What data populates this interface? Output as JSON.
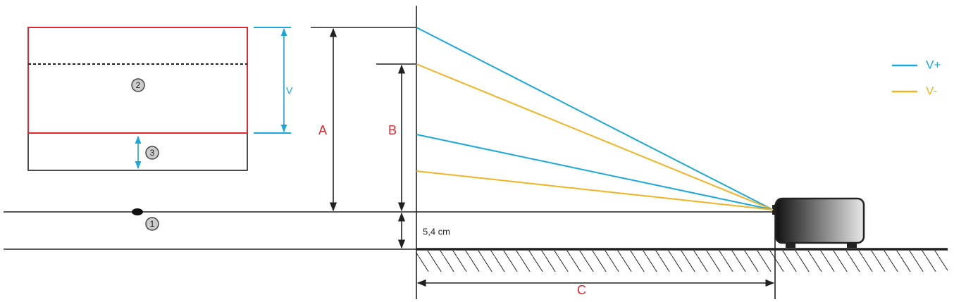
{
  "labels": {
    "v": "V",
    "a": "A",
    "b": "B",
    "c": "C"
  },
  "offset": "5,4 cm",
  "markers": [
    "1",
    "2",
    "3"
  ],
  "legend": [
    {
      "name": "V+",
      "color": "#1aa7dc"
    },
    {
      "name": "V-",
      "color": "#f0b323"
    }
  ]
}
